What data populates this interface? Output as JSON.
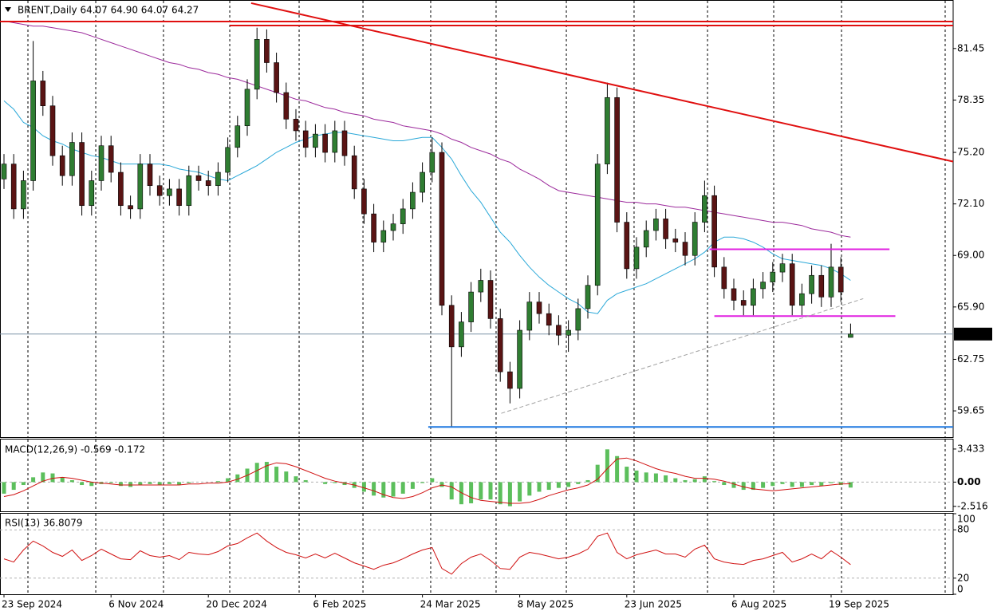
{
  "chart_data": [
    {
      "type": "candlestick",
      "title": "BRENT,Daily  64.07 64.90 64.07 64.27",
      "categories": [
        "23 Sep 2024",
        null,
        null,
        null,
        null,
        null,
        null,
        null,
        null,
        null,
        null,
        "6 Nov 2024",
        null,
        null,
        null,
        null,
        null,
        null,
        null,
        null,
        null,
        "20 Dec 2024",
        null,
        null,
        null,
        null,
        null,
        null,
        null,
        null,
        null,
        null,
        "6 Feb 2025",
        null,
        null,
        null,
        null,
        null,
        null,
        null,
        null,
        null,
        null,
        "24 Mar 2025",
        null,
        null,
        null,
        null,
        null,
        null,
        null,
        null,
        null,
        "8 May 2025",
        null,
        null,
        null,
        null,
        null,
        null,
        null,
        null,
        null,
        null,
        "23 Jun 2025",
        null,
        null,
        null,
        null,
        null,
        null,
        null,
        null,
        null,
        null,
        "6 Aug 2025",
        null,
        null,
        null,
        null,
        null,
        null,
        null,
        null,
        null,
        "19 Sep 2025",
        null,
        null
      ],
      "xlim": [
        -0.41,
        97.54
      ],
      "x_grid": [
        2.46,
        9.43,
        16.39,
        23.2,
        30.33,
        36.89,
        43.85,
        50.57,
        57.79,
        64.75,
        72.3,
        79.1,
        86.07,
        96.72
      ],
      "open": [
        73.6,
        74.5,
        71.8,
        73.5,
        79.5,
        78.0,
        75.0,
        73.8,
        75.8,
        72.0,
        73.5,
        75.6,
        74.0,
        72.0,
        71.8,
        74.5,
        73.2,
        72.6,
        73.0,
        72.0,
        73.8,
        73.5,
        73.2,
        74.0,
        75.5,
        76.8,
        79.0,
        82.0,
        80.6,
        78.8,
        77.2,
        76.5,
        75.5,
        76.3,
        75.2,
        76.5,
        75.0,
        73.0,
        71.5,
        69.8,
        70.5,
        70.9,
        71.8,
        72.8,
        74.0,
        75.2,
        66.0,
        63.5,
        65.0,
        66.8,
        67.5,
        65.2,
        62.0,
        61.0,
        64.5,
        66.2,
        65.5,
        64.8,
        64.2,
        64.5,
        65.8,
        67.2,
        74.5,
        78.5,
        71.0,
        68.2,
        69.5,
        70.5,
        71.2,
        70.0,
        69.8,
        69.0,
        71.0,
        72.6,
        68.3,
        67.0,
        66.3,
        66.0,
        67.0,
        67.4,
        68.0,
        68.5,
        66.0,
        66.7,
        67.8,
        66.5,
        68.3,
        64.07
      ],
      "high": [
        75.1,
        75.1,
        74.1,
        81.9,
        80.1,
        78.6,
        75.6,
        76.4,
        76.4,
        74.1,
        76.2,
        76.2,
        74.6,
        72.6,
        75.1,
        75.1,
        73.8,
        73.6,
        73.6,
        74.4,
        74.4,
        74.1,
        74.6,
        76.1,
        77.4,
        79.6,
        82.7,
        82.6,
        81.2,
        79.4,
        77.8,
        77.1,
        76.9,
        76.9,
        77.1,
        77.1,
        75.6,
        73.6,
        72.1,
        71.1,
        71.5,
        72.4,
        73.4,
        74.6,
        76.1,
        75.8,
        66.6,
        65.6,
        67.4,
        68.2,
        68.1,
        65.8,
        62.6,
        65.1,
        66.8,
        66.8,
        66.1,
        65.4,
        65.1,
        66.4,
        67.8,
        75.1,
        79.4,
        79.1,
        71.6,
        70.1,
        71.1,
        71.8,
        71.8,
        70.6,
        70.4,
        71.6,
        73.5,
        73.2,
        68.9,
        67.6,
        66.9,
        67.6,
        68.0,
        68.6,
        69.1,
        69.1,
        67.3,
        68.4,
        68.4,
        69.7,
        68.9,
        64.9
      ],
      "low": [
        73.0,
        71.2,
        71.2,
        72.9,
        77.4,
        74.4,
        73.2,
        73.2,
        71.4,
        71.4,
        72.9,
        73.4,
        71.4,
        71.2,
        71.2,
        72.6,
        72.0,
        72.0,
        71.4,
        71.4,
        72.9,
        72.6,
        72.6,
        73.4,
        74.9,
        76.2,
        78.4,
        80.0,
        78.2,
        76.6,
        75.9,
        74.9,
        74.9,
        74.6,
        74.6,
        74.4,
        72.4,
        70.9,
        69.2,
        69.2,
        69.9,
        70.3,
        71.2,
        72.2,
        73.4,
        65.4,
        58.7,
        62.9,
        64.4,
        66.2,
        64.6,
        61.4,
        60.1,
        60.4,
        63.9,
        64.9,
        64.2,
        63.6,
        63.2,
        63.9,
        65.2,
        66.6,
        73.9,
        70.4,
        67.6,
        67.6,
        68.9,
        69.9,
        69.4,
        69.2,
        68.4,
        68.4,
        70.4,
        67.7,
        66.4,
        65.7,
        65.4,
        65.4,
        66.4,
        66.8,
        67.4,
        65.4,
        65.4,
        66.1,
        65.9,
        65.9,
        66.2,
        64.07
      ],
      "close": [
        74.5,
        71.8,
        73.5,
        79.5,
        78.0,
        75.0,
        73.8,
        75.8,
        72.0,
        73.5,
        75.6,
        74.0,
        72.0,
        71.8,
        74.5,
        73.2,
        72.6,
        73.0,
        72.0,
        73.8,
        73.5,
        73.2,
        74.0,
        75.5,
        76.8,
        79.0,
        82.0,
        80.6,
        78.8,
        77.2,
        76.5,
        75.5,
        76.3,
        75.2,
        76.5,
        75.0,
        73.0,
        71.5,
        69.8,
        70.5,
        70.9,
        71.8,
        72.8,
        74.0,
        75.2,
        66.0,
        63.5,
        65.0,
        66.8,
        67.5,
        65.2,
        62.0,
        61.0,
        64.5,
        66.2,
        65.5,
        64.8,
        64.2,
        64.5,
        65.8,
        67.2,
        74.5,
        78.5,
        71.0,
        68.2,
        69.5,
        70.5,
        71.2,
        70.0,
        69.8,
        69.0,
        71.0,
        72.6,
        68.3,
        67.0,
        66.3,
        66.0,
        67.0,
        67.4,
        68.0,
        68.5,
        66.0,
        66.7,
        67.8,
        66.5,
        68.3,
        66.8,
        64.27
      ],
      "up_color": "#2f7d32",
      "down_color": "#5a1414",
      "wick_color": "#000000",
      "overlays": [
        {
          "color": "#9c2a9c",
          "values": [
            83.1,
            83.0,
            82.9,
            82.8,
            82.8,
            82.7,
            82.6,
            82.5,
            82.4,
            82.2,
            82.0,
            81.8,
            81.6,
            81.4,
            81.2,
            81.0,
            80.8,
            80.6,
            80.5,
            80.3,
            80.2,
            80.0,
            79.9,
            79.7,
            79.6,
            79.4,
            79.2,
            79.0,
            78.8,
            78.6,
            78.4,
            78.3,
            78.1,
            77.9,
            77.8,
            77.6,
            77.5,
            77.4,
            77.2,
            77.1,
            77.0,
            76.8,
            76.7,
            76.6,
            76.5,
            76.3,
            76.0,
            75.8,
            75.5,
            75.3,
            75.1,
            74.8,
            74.6,
            74.2,
            73.9,
            73.6,
            73.2,
            72.9,
            72.8,
            72.7,
            72.6,
            72.5,
            72.4,
            72.3,
            72.2,
            72.2,
            72.1,
            72.1,
            72.0,
            71.9,
            71.9,
            71.8,
            71.7,
            71.6,
            71.5,
            71.4,
            71.3,
            71.2,
            71.1,
            71.0,
            71.0,
            70.9,
            70.8,
            70.6,
            70.5,
            70.4,
            70.2,
            70.1
          ]
        },
        {
          "color": "#2aa8d8",
          "values": [
            78.3,
            77.8,
            77.0,
            76.7,
            76.2,
            75.9,
            75.7,
            75.4,
            75.2,
            75.0,
            74.9,
            74.7,
            74.5,
            74.5,
            74.5,
            74.5,
            74.5,
            74.4,
            74.2,
            74.1,
            74.0,
            73.8,
            73.6,
            73.5,
            73.8,
            74.1,
            74.4,
            74.8,
            75.2,
            75.5,
            75.8,
            76.0,
            76.2,
            76.3,
            76.4,
            76.4,
            76.3,
            76.2,
            76.1,
            76.0,
            75.9,
            75.9,
            76.0,
            76.1,
            76.1,
            75.5,
            74.8,
            73.8,
            72.9,
            72.2,
            71.3,
            70.4,
            69.8,
            69.0,
            68.3,
            67.7,
            67.2,
            66.8,
            66.4,
            66.1,
            65.6,
            65.5,
            66.3,
            66.7,
            66.9,
            67.1,
            67.3,
            67.6,
            67.9,
            68.2,
            68.5,
            68.8,
            69.2,
            69.8,
            70.1,
            70.1,
            70.0,
            69.8,
            69.5,
            69.1,
            68.8,
            68.7,
            68.6,
            68.5,
            68.4,
            68.2,
            67.9,
            67.5
          ]
        }
      ],
      "ylim": [
        58.07,
        84.32
      ],
      "yticks": [
        59.65,
        62.75,
        {
          "value": 65.9,
          "label": "65.90"
        },
        {
          "value": 69.0,
          "label": "69.00"
        },
        {
          "value": 72.1,
          "label": "72.10"
        },
        {
          "value": 75.2,
          "label": "75.20"
        },
        78.35,
        81.45
      ],
      "last_price": 64.27,
      "last_price_color": "#7f93a8",
      "lines": [
        {
          "x": [
            25.4,
            97.9
          ],
          "y": [
            84.18,
            74.6
          ],
          "color": "#e01010",
          "width": 2,
          "dash": false
        },
        {
          "x": [
            -0.4,
            98
          ],
          "y": [
            83.07,
            83.07
          ],
          "color": "#e01010",
          "width": 2,
          "dash": false
        },
        {
          "x": [
            23.2,
            98
          ],
          "y": [
            82.83,
            82.83
          ],
          "color": "#e01010",
          "width": 2,
          "dash": false
        },
        {
          "x": [
            72.5,
            91.0
          ],
          "y": [
            69.37,
            69.37
          ],
          "color": "#e020e0",
          "width": 2,
          "dash": false
        },
        {
          "x": [
            73.0,
            91.6
          ],
          "y": [
            65.35,
            65.35
          ],
          "color": "#e020e0",
          "width": 2,
          "dash": false
        },
        {
          "x": [
            43.6,
            98
          ],
          "y": [
            58.68,
            58.68
          ],
          "color": "#1e78e0",
          "width": 2,
          "dash": false
        },
        {
          "x": [
            51.1,
            88.3
          ],
          "y": [
            59.5,
            66.4
          ],
          "color": "#a0a0a0",
          "width": 1,
          "dash": true
        }
      ]
    },
    {
      "type": "macd",
      "title": "MACD(12,26,9) -0.569 -0.172",
      "histogram": [
        -1.2,
        -0.8,
        -0.3,
        0.5,
        1.0,
        0.9,
        0.5,
        0.2,
        -0.3,
        -0.4,
        -0.2,
        -0.1,
        -0.4,
        -0.5,
        -0.3,
        -0.2,
        -0.3,
        -0.2,
        -0.3,
        -0.1,
        0.0,
        0.0,
        0.1,
        0.4,
        0.8,
        1.4,
        2.0,
        2.1,
        1.6,
        1.1,
        0.6,
        0.2,
        0.0,
        -0.2,
        -0.1,
        -0.3,
        -0.6,
        -1.0,
        -1.4,
        -1.6,
        -1.5,
        -1.2,
        -0.7,
        -0.1,
        0.4,
        -0.5,
        -1.8,
        -2.3,
        -2.2,
        -1.8,
        -1.8,
        -2.3,
        -2.5,
        -2.0,
        -1.4,
        -1.0,
        -0.8,
        -0.6,
        -0.5,
        -0.2,
        0.2,
        1.8,
        3.4,
        2.7,
        1.6,
        1.2,
        1.0,
        0.9,
        0.7,
        0.4,
        0.2,
        0.3,
        0.6,
        0.1,
        -0.3,
        -0.6,
        -0.8,
        -0.8,
        -0.6,
        -0.4,
        -0.2,
        -0.5,
        -0.5,
        -0.3,
        -0.4,
        -0.1,
        -0.3,
        -0.569
      ],
      "histogram_color": "#5cbf5c",
      "signal": [
        -1.5,
        -1.3,
        -0.9,
        -0.4,
        0.1,
        0.4,
        0.5,
        0.4,
        0.2,
        0.0,
        -0.1,
        -0.2,
        -0.3,
        -0.3,
        -0.3,
        -0.3,
        -0.3,
        -0.3,
        -0.3,
        -0.2,
        -0.2,
        -0.1,
        -0.1,
        0.0,
        0.3,
        0.7,
        1.2,
        1.7,
        2.0,
        1.9,
        1.6,
        1.2,
        0.8,
        0.4,
        0.1,
        -0.1,
        -0.3,
        -0.6,
        -0.9,
        -1.3,
        -1.6,
        -1.7,
        -1.5,
        -1.1,
        -0.6,
        -0.3,
        -0.5,
        -1.1,
        -1.6,
        -1.9,
        -2.0,
        -2.1,
        -2.2,
        -2.2,
        -2.1,
        -1.8,
        -1.4,
        -1.1,
        -0.8,
        -0.6,
        -0.3,
        0.3,
        1.4,
        2.4,
        2.5,
        2.2,
        1.8,
        1.4,
        1.1,
        0.9,
        0.6,
        0.4,
        0.4,
        0.3,
        0.1,
        -0.2,
        -0.5,
        -0.7,
        -0.8,
        -0.9,
        -0.8,
        -0.7,
        -0.6,
        -0.5,
        -0.4,
        -0.3,
        -0.2,
        -0.172
      ],
      "signal_color": "#d01010",
      "ylim": [
        -3.03,
        4.42
      ],
      "yticks": [
        3.433,
        {
          "value": 0,
          "label": "0.00"
        },
        -2.516
      ],
      "levels": [
        0
      ]
    },
    {
      "type": "line",
      "title": "RSI(13) 36.8079",
      "values": [
        44,
        40,
        55,
        66,
        60,
        52,
        47,
        55,
        42,
        48,
        56,
        50,
        44,
        43,
        54,
        48,
        46,
        48,
        43,
        52,
        50,
        49,
        53,
        60,
        63,
        70,
        76,
        66,
        58,
        52,
        49,
        45,
        50,
        45,
        51,
        45,
        39,
        35,
        31,
        36,
        39,
        44,
        50,
        55,
        58,
        32,
        25,
        38,
        46,
        50,
        42,
        32,
        31,
        46,
        52,
        50,
        47,
        44,
        46,
        50,
        56,
        72,
        76,
        52,
        44,
        49,
        52,
        55,
        50,
        50,
        46,
        56,
        61,
        44,
        40,
        38,
        37,
        42,
        44,
        48,
        52,
        40,
        44,
        50,
        44,
        54,
        46,
        36.8079
      ],
      "color": "#d01010",
      "ylim": [
        0,
        100
      ],
      "yticks": [
        100,
        80,
        20,
        0
      ],
      "levels": [
        80,
        20
      ]
    }
  ]
}
